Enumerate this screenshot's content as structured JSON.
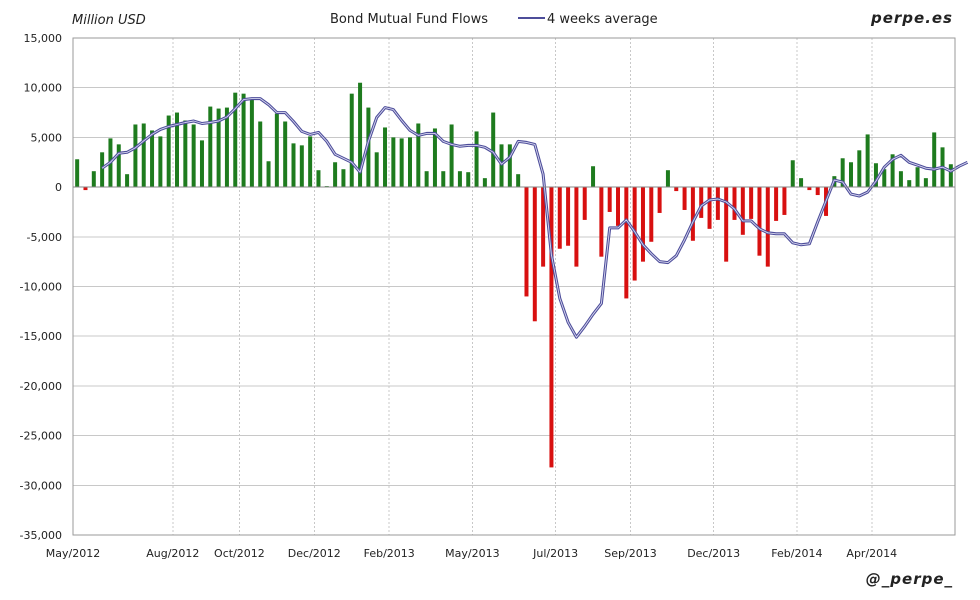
{
  "header": {
    "unit_label": "Million USD",
    "site": "perpe.es",
    "handle": "@_perpe_"
  },
  "colors": {
    "positive_bar": "#1e7b1e",
    "negative_bar": "#d81010",
    "average_line": "#4d4d9a",
    "grid": "#c8c8c8"
  },
  "chart_data": {
    "type": "bar",
    "title": "Bond Mutual Fund Flows",
    "ylabel": "Million USD",
    "xlabel": "",
    "ylim": [
      -35000,
      15000
    ],
    "yticks": [
      15000,
      10000,
      5000,
      0,
      -5000,
      -10000,
      -15000,
      -20000,
      -25000,
      -30000,
      -35000
    ],
    "ytick_labels": [
      "15,000",
      "10,000",
      "5,000",
      "0",
      "-5,000",
      "-10,000",
      "-15,000",
      "-20,000",
      "-25,000",
      "-30,000",
      "-35,000"
    ],
    "x_range_weeks": [
      0,
      106
    ],
    "xticks": [
      {
        "label": "May/2012",
        "week": 0
      },
      {
        "label": "Aug/2012",
        "week": 12
      },
      {
        "label": "Oct/2012",
        "week": 20
      },
      {
        "label": "Dec/2012",
        "week": 29
      },
      {
        "label": "Feb/2013",
        "week": 38
      },
      {
        "label": "May/2013",
        "week": 48
      },
      {
        "label": "Jul/2013",
        "week": 58
      },
      {
        "label": "Sep/2013",
        "week": 67
      },
      {
        "label": "Dec/2013",
        "week": 77
      },
      {
        "label": "Feb/2014",
        "week": 87
      },
      {
        "label": "Apr/2014",
        "week": 96
      }
    ],
    "series": [
      {
        "name": "Bond Mutual Fund Flows",
        "style": "bar",
        "values": [
          2800,
          -300,
          1600,
          3500,
          4900,
          4300,
          1300,
          6300,
          6400,
          5700,
          5100,
          7200,
          7500,
          6700,
          6300,
          4700,
          8100,
          7900,
          8000,
          9500,
          9400,
          8800,
          6600,
          2600,
          7400,
          6600,
          4400,
          4200,
          5100,
          1700,
          100,
          2500,
          1800,
          9400,
          10500,
          8000,
          3500,
          6000,
          5000,
          4900,
          5000,
          6400,
          1600,
          5900,
          1600,
          6300,
          1600,
          1500,
          5600,
          900,
          7500,
          4300,
          4300,
          1300,
          -11000,
          -13500,
          -8000,
          -28200,
          -6200,
          -5900,
          -8000,
          -3300,
          2100,
          -7000,
          -2500,
          -3900,
          -11200,
          -9400,
          -7500,
          -5500,
          -2600,
          1700,
          -400,
          -2300,
          -5400,
          -3100,
          -4200,
          -3300,
          -7500,
          -3300,
          -4800,
          -3200,
          -6900,
          -8000,
          -3400,
          -2800,
          2700,
          900,
          -300,
          -800,
          -2900,
          1100,
          2900,
          2500,
          3700,
          5300,
          2400,
          1800,
          3300,
          1600,
          700,
          2000,
          900,
          5500,
          4000,
          2300
        ],
        "positive_color": "#1e7b1e",
        "negative_color": "#d81010"
      },
      {
        "name": "4 weeks average",
        "style": "line",
        "start_week": 3,
        "values": [
          1900,
          2500,
          3400,
          3500,
          3950,
          4650,
          5300,
          5800,
          6100,
          6300,
          6500,
          6650,
          6400,
          6500,
          6650,
          7050,
          7900,
          8800,
          8900,
          8900,
          8300,
          7500,
          7500,
          6600,
          5600,
          5300,
          5500,
          4600,
          3300,
          2900,
          2500,
          1500,
          4600,
          7000,
          8000,
          7800,
          6700,
          5700,
          5200,
          5400,
          5400,
          4600,
          4300,
          4100,
          4200,
          4200,
          4000,
          3500,
          2300,
          3000,
          4600,
          4500,
          4300,
          1300,
          -6800,
          -11200,
          -13600,
          -15100,
          -14000,
          -12800,
          -11700,
          -4100,
          -4100,
          -3300,
          -4500,
          -5800,
          -6700,
          -7500,
          -7600,
          -6900,
          -5300,
          -3500,
          -1900,
          -1300,
          -1200,
          -1500,
          -2200,
          -3400,
          -3400,
          -4200,
          -4600,
          -4700,
          -4700,
          -5600,
          -5800,
          -5700,
          -3500,
          -1400,
          700,
          500,
          -700,
          -900,
          -500,
          600,
          2000,
          2800,
          3200,
          2500,
          2200,
          1900,
          1800,
          2000,
          1600,
          2100,
          2500
        ],
        "color": "#4d4d9a"
      }
    ],
    "legend": {
      "entries": [
        "4 weeks average"
      ],
      "placement": "top-center"
    },
    "grid": true
  }
}
